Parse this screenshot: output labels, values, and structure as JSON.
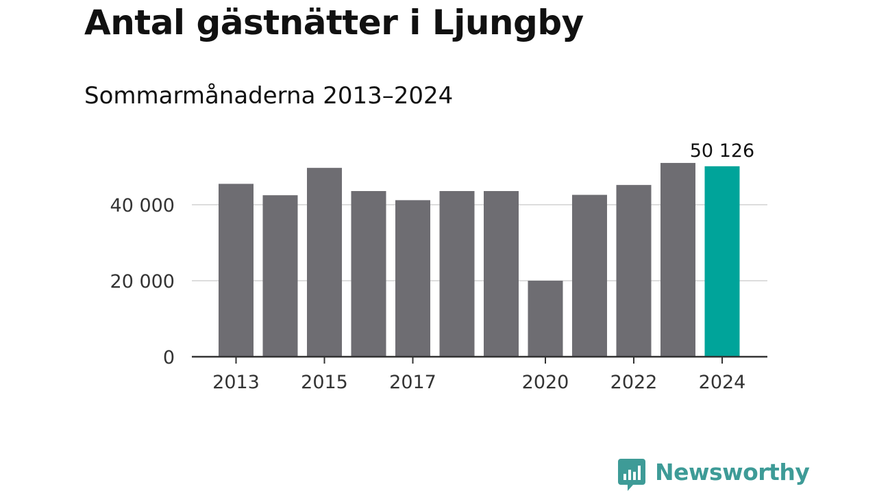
{
  "chart_data": {
    "type": "bar",
    "title": "Antal gästnätter i Ljungby",
    "subtitle": "Sommarmånaderna 2013–2024",
    "xlabel": "",
    "ylabel": "",
    "categories": [
      "2013",
      "2014",
      "2015",
      "2016",
      "2017",
      "2018",
      "2019",
      "2020",
      "2021",
      "2022",
      "2023",
      "2024"
    ],
    "values": [
      45500,
      42500,
      49700,
      43600,
      41200,
      43600,
      43600,
      20000,
      42600,
      45200,
      51000,
      50126
    ],
    "x_tick_labels": [
      "2013",
      "2015",
      "2017",
      "2020",
      "2022",
      "2024"
    ],
    "y_ticks": [
      0,
      20000,
      40000
    ],
    "y_tick_labels": [
      "0",
      "20 000",
      "40 000"
    ],
    "ylim": [
      0,
      58000
    ],
    "grid": true,
    "legend": "none",
    "highlight_index": 11,
    "annotation": "50 126",
    "colors": {
      "bar": "#6e6d72",
      "highlight": "#00a49a",
      "grid": "#dddddd",
      "axis": "#333333"
    }
  },
  "brand": {
    "name": "Newsworthy",
    "icon": "chat-bar-chart-icon",
    "color": "#3e9b97"
  }
}
